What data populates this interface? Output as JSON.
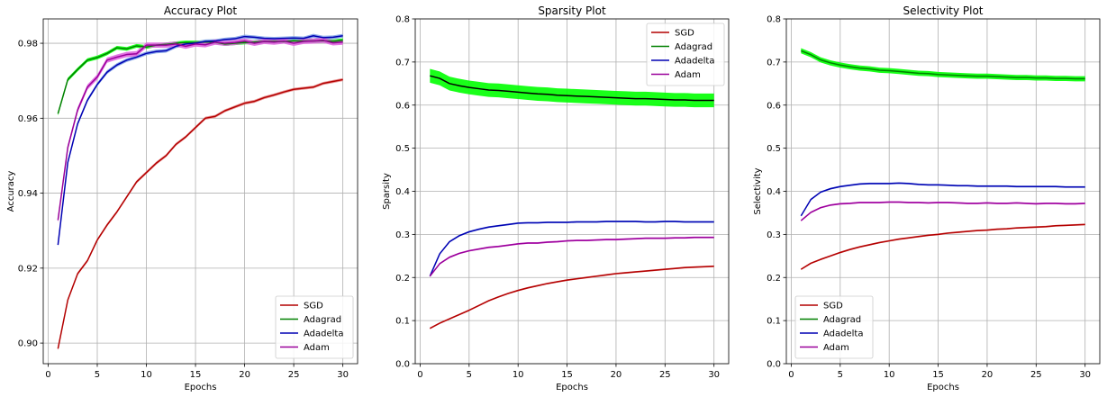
{
  "chart_data": [
    {
      "type": "line",
      "title": "Accuracy Plot",
      "xlabel": "Epochs",
      "ylabel": "Accuracy",
      "xlim": [
        -0.5,
        31.5
      ],
      "ylim": [
        0.8945,
        0.9865
      ],
      "xticks": [
        0,
        5,
        10,
        15,
        20,
        25,
        30
      ],
      "yticks": [
        0.9,
        0.92,
        0.94,
        0.96,
        0.98
      ],
      "ytick_labels": [
        "0.90",
        "0.92",
        "0.94",
        "0.96",
        "0.98"
      ],
      "grid": true,
      "legend_position": "lower-right",
      "x": [
        1,
        2,
        3,
        4,
        5,
        6,
        7,
        8,
        9,
        10,
        11,
        12,
        13,
        14,
        15,
        16,
        17,
        18,
        19,
        20,
        21,
        22,
        23,
        24,
        25,
        26,
        27,
        28,
        29,
        30
      ],
      "series": [
        {
          "name": "SGD",
          "color": "#b30000",
          "band_color": "#e88a8a",
          "band": 0.0004,
          "values": [
            0.8985,
            0.9115,
            0.9185,
            0.922,
            0.9275,
            0.9315,
            0.935,
            0.939,
            0.943,
            0.9455,
            0.948,
            0.95,
            0.953,
            0.955,
            0.9575,
            0.96,
            0.9605,
            0.962,
            0.963,
            0.964,
            0.9645,
            0.9655,
            0.9662,
            0.967,
            0.9677,
            0.968,
            0.9683,
            0.9693,
            0.9698,
            0.9703
          ]
        },
        {
          "name": "Adagrad",
          "color": "#008000",
          "band_color": "#00ff00",
          "band": 0.0005,
          "values": [
            0.9612,
            0.9703,
            0.973,
            0.9755,
            0.9762,
            0.9773,
            0.9788,
            0.9785,
            0.9793,
            0.979,
            0.9795,
            0.9797,
            0.98,
            0.9802,
            0.9802,
            0.9803,
            0.9803,
            0.9798,
            0.98,
            0.9802,
            0.9803,
            0.9805,
            0.9805,
            0.9805,
            0.9806,
            0.9806,
            0.9806,
            0.9807,
            0.9805,
            0.9808
          ]
        },
        {
          "name": "Adadelta",
          "color": "#0000b3",
          "band_color": "#7fa0e6",
          "band": 0.0005,
          "values": [
            0.9262,
            0.9482,
            0.9585,
            0.9648,
            0.969,
            0.9723,
            0.9742,
            0.9755,
            0.9763,
            0.9773,
            0.9778,
            0.978,
            0.9792,
            0.9798,
            0.98,
            0.9805,
            0.9806,
            0.981,
            0.9812,
            0.9818,
            0.9816,
            0.9813,
            0.9812,
            0.9813,
            0.9814,
            0.9813,
            0.982,
            0.9815,
            0.9816,
            0.982
          ]
        },
        {
          "name": "Adam",
          "color": "#990099",
          "band_color": "#e066e0",
          "band": 0.0007,
          "values": [
            0.9328,
            0.9522,
            0.9622,
            0.9683,
            0.971,
            0.9755,
            0.9763,
            0.977,
            0.9772,
            0.9795,
            0.9795,
            0.9795,
            0.9798,
            0.9792,
            0.9798,
            0.9796,
            0.9803,
            0.98,
            0.9802,
            0.9806,
            0.98,
            0.9805,
            0.9803,
            0.9806,
            0.98,
            0.9805,
            0.9806,
            0.9808,
            0.9801,
            0.9803
          ]
        }
      ]
    },
    {
      "type": "line",
      "title": "Sparsity Plot",
      "xlabel": "Epochs",
      "ylabel": "Sparsity",
      "xlim": [
        -0.5,
        31.5
      ],
      "ylim": [
        0.0,
        0.8
      ],
      "xticks": [
        0,
        5,
        10,
        15,
        20,
        25,
        30
      ],
      "yticks": [
        0.0,
        0.1,
        0.2,
        0.3,
        0.4,
        0.5,
        0.6,
        0.7,
        0.8
      ],
      "ytick_labels": [
        "0.0",
        "0.1",
        "0.2",
        "0.3",
        "0.4",
        "0.5",
        "0.6",
        "0.7",
        "0.8"
      ],
      "grid": true,
      "legend_position": "top-right",
      "x": [
        1,
        2,
        3,
        4,
        5,
        6,
        7,
        8,
        9,
        10,
        11,
        12,
        13,
        14,
        15,
        16,
        17,
        18,
        19,
        20,
        21,
        22,
        23,
        24,
        25,
        26,
        27,
        28,
        29,
        30
      ],
      "series": [
        {
          "name": "SGD",
          "color": "#b30000",
          "band_color": "#e88a8a",
          "band": 0.002,
          "values": [
            0.082,
            0.094,
            0.104,
            0.114,
            0.124,
            0.135,
            0.146,
            0.155,
            0.163,
            0.17,
            0.176,
            0.181,
            0.186,
            0.19,
            0.194,
            0.197,
            0.2,
            0.203,
            0.206,
            0.209,
            0.211,
            0.213,
            0.215,
            0.217,
            0.219,
            0.221,
            0.223,
            0.224,
            0.225,
            0.226
          ]
        },
        {
          "name": "Adagrad",
          "color": "#000000",
          "band_color": "#00ff00",
          "band": 0.016,
          "values": [
            0.668,
            0.662,
            0.65,
            0.645,
            0.641,
            0.638,
            0.635,
            0.634,
            0.632,
            0.63,
            0.628,
            0.626,
            0.625,
            0.623,
            0.622,
            0.621,
            0.62,
            0.619,
            0.618,
            0.617,
            0.616,
            0.615,
            0.615,
            0.614,
            0.613,
            0.612,
            0.612,
            0.611,
            0.611,
            0.611
          ]
        },
        {
          "name": "Adadelta",
          "color": "#0000b3",
          "band_color": "#7fa0e6",
          "band": 0.002,
          "values": [
            0.203,
            0.255,
            0.283,
            0.297,
            0.306,
            0.312,
            0.317,
            0.32,
            0.323,
            0.326,
            0.327,
            0.327,
            0.328,
            0.328,
            0.328,
            0.329,
            0.329,
            0.329,
            0.33,
            0.33,
            0.33,
            0.33,
            0.329,
            0.329,
            0.33,
            0.33,
            0.329,
            0.329,
            0.329,
            0.329
          ]
        },
        {
          "name": "Adam",
          "color": "#990099",
          "band_color": "#e066e0",
          "band": 0.002,
          "values": [
            0.203,
            0.232,
            0.247,
            0.256,
            0.262,
            0.266,
            0.27,
            0.272,
            0.275,
            0.278,
            0.28,
            0.28,
            0.282,
            0.283,
            0.285,
            0.286,
            0.286,
            0.287,
            0.288,
            0.288,
            0.289,
            0.29,
            0.291,
            0.291,
            0.291,
            0.292,
            0.292,
            0.293,
            0.293,
            0.293
          ]
        }
      ]
    },
    {
      "type": "line",
      "title": "Selectivity Plot",
      "xlabel": "Epochs",
      "ylabel": "Selectivity",
      "xlim": [
        -0.5,
        31.5
      ],
      "ylim": [
        0.0,
        0.8
      ],
      "xticks": [
        0,
        5,
        10,
        15,
        20,
        25,
        30
      ],
      "yticks": [
        0.0,
        0.1,
        0.2,
        0.3,
        0.4,
        0.5,
        0.6,
        0.7,
        0.8
      ],
      "ytick_labels": [
        "0.0",
        "0.1",
        "0.2",
        "0.3",
        "0.4",
        "0.5",
        "0.6",
        "0.7",
        "0.8"
      ],
      "grid": true,
      "legend_position": "lower-left",
      "x": [
        1,
        2,
        3,
        4,
        5,
        6,
        7,
        8,
        9,
        10,
        11,
        12,
        13,
        14,
        15,
        16,
        17,
        18,
        19,
        20,
        21,
        22,
        23,
        24,
        25,
        26,
        27,
        28,
        29,
        30
      ],
      "series": [
        {
          "name": "SGD",
          "color": "#b30000",
          "band_color": "#e88a8a",
          "band": 0.002,
          "values": [
            0.219,
            0.233,
            0.242,
            0.25,
            0.258,
            0.265,
            0.271,
            0.276,
            0.281,
            0.285,
            0.289,
            0.292,
            0.295,
            0.298,
            0.3,
            0.303,
            0.305,
            0.307,
            0.309,
            0.31,
            0.312,
            0.313,
            0.315,
            0.316,
            0.317,
            0.318,
            0.32,
            0.321,
            0.322,
            0.323
          ]
        },
        {
          "name": "Adagrad",
          "color": "#008000",
          "band_color": "#00ff00",
          "band": 0.006,
          "values": [
            0.726,
            0.717,
            0.705,
            0.698,
            0.693,
            0.689,
            0.686,
            0.684,
            0.681,
            0.68,
            0.678,
            0.676,
            0.674,
            0.673,
            0.671,
            0.67,
            0.669,
            0.668,
            0.667,
            0.667,
            0.666,
            0.665,
            0.664,
            0.664,
            0.663,
            0.663,
            0.662,
            0.662,
            0.661,
            0.661
          ]
        },
        {
          "name": "Adadelta",
          "color": "#0000b3",
          "band_color": "#7fa0e6",
          "band": 0.002,
          "values": [
            0.343,
            0.381,
            0.398,
            0.406,
            0.411,
            0.414,
            0.417,
            0.418,
            0.418,
            0.418,
            0.419,
            0.418,
            0.416,
            0.415,
            0.415,
            0.414,
            0.413,
            0.413,
            0.412,
            0.412,
            0.412,
            0.412,
            0.411,
            0.411,
            0.411,
            0.411,
            0.411,
            0.41,
            0.41,
            0.41
          ]
        },
        {
          "name": "Adam",
          "color": "#990099",
          "band_color": "#e066e0",
          "band": 0.002,
          "values": [
            0.332,
            0.351,
            0.362,
            0.368,
            0.371,
            0.372,
            0.374,
            0.374,
            0.374,
            0.375,
            0.375,
            0.374,
            0.374,
            0.373,
            0.374,
            0.374,
            0.373,
            0.372,
            0.372,
            0.373,
            0.372,
            0.372,
            0.373,
            0.372,
            0.371,
            0.372,
            0.372,
            0.371,
            0.371,
            0.372
          ]
        }
      ]
    }
  ]
}
